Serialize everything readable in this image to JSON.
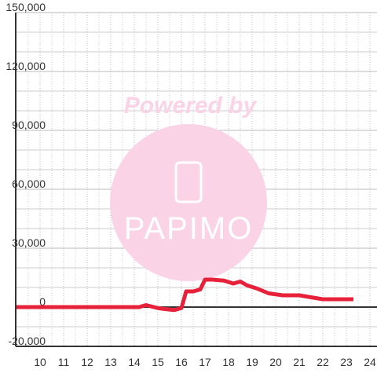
{
  "chart_data": {
    "type": "line",
    "x": [
      9,
      14.2,
      14.5,
      15,
      15.3,
      15.7,
      16,
      16.2,
      16.5,
      16.8,
      17,
      17.3,
      17.8,
      18.2,
      18.5,
      18.8,
      19.2,
      19.7,
      20.3,
      21,
      21.5,
      22,
      23.3
    ],
    "series": [
      {
        "color": "#e8213a",
        "values": [
          0,
          0,
          1000,
          -500,
          -1000,
          -1500,
          -500,
          8000,
          8000,
          9000,
          14000,
          14000,
          13500,
          12000,
          13000,
          11000,
          9500,
          7000,
          6000,
          6000,
          5000,
          4000,
          4000
        ]
      }
    ],
    "xlim": [
      9,
      24.3
    ],
    "xticks": [
      10,
      11,
      12,
      13,
      14,
      15,
      16,
      17,
      18,
      19,
      20,
      21,
      22,
      23,
      24
    ],
    "xminor": [
      9.5,
      10.5,
      11.5,
      12.5,
      13.5,
      14.5,
      15.5,
      16.5,
      17.5,
      18.5,
      19.5,
      20.5,
      21.5,
      22.5,
      23.5
    ],
    "ylim": [
      -20000,
      150000
    ],
    "yticks": [
      {
        "value": -20000,
        "label": "-20,000"
      },
      0,
      {
        "value": 30000,
        "label": "30,000"
      },
      {
        "value": 60000,
        "label": "60,000"
      },
      {
        "value": 90000,
        "label": "90,000"
      },
      {
        "value": 120000,
        "label": "120,000"
      },
      {
        "value": 150000,
        "label": "150,000"
      }
    ],
    "yminor": [
      -10000,
      10000,
      20000,
      40000,
      50000,
      70000,
      80000,
      100000,
      110000,
      130000,
      140000
    ],
    "grid": true
  },
  "watermark": {
    "text": "Powered by",
    "logo": "PAPIMO"
  }
}
